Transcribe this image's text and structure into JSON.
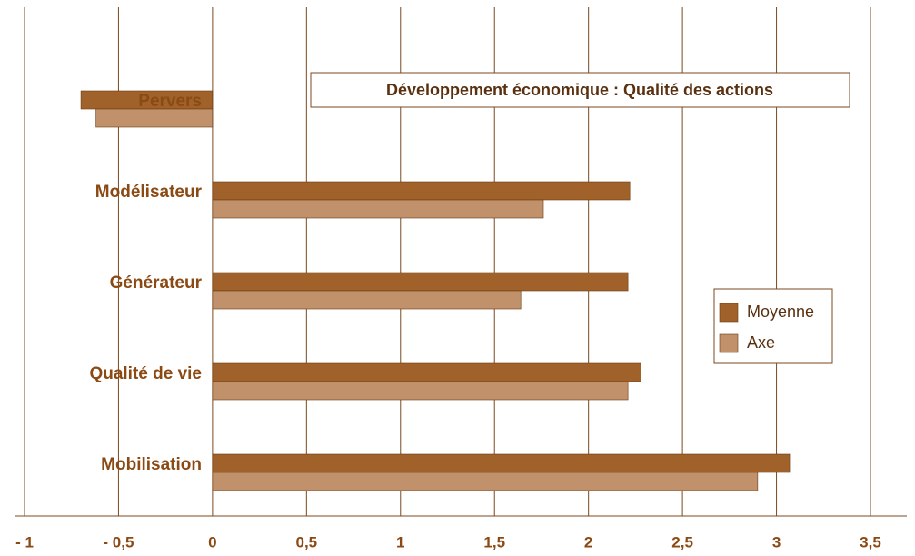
{
  "chart_data": {
    "type": "hbar",
    "title": "Développement économique  : Qualité des actions",
    "categories": [
      "Pervers",
      "Modélisateur",
      "Générateur",
      "Qualité de vie",
      "Mobilisation"
    ],
    "series": [
      {
        "name": "Moyenne",
        "color": "#a0622a",
        "values": [
          -0.7,
          2.22,
          2.21,
          2.28,
          3.07
        ]
      },
      {
        "name": "Axe",
        "color": "#c0916a",
        "values": [
          -0.62,
          1.76,
          1.64,
          2.21,
          2.9
        ]
      }
    ],
    "xlim": [
      -1,
      3.5
    ],
    "xticks": [
      {
        "value": -1,
        "label": "- 1"
      },
      {
        "value": -0.5,
        "label": "- 0,5"
      },
      0,
      {
        "value": 0.5,
        "label": "0,5"
      },
      1,
      {
        "value": 1.5,
        "label": "1,5"
      },
      2,
      {
        "value": 2.5,
        "label": "2,5"
      },
      3,
      {
        "value": 3.5,
        "label": "3,5"
      }
    ],
    "grid": true,
    "legend": "right"
  }
}
